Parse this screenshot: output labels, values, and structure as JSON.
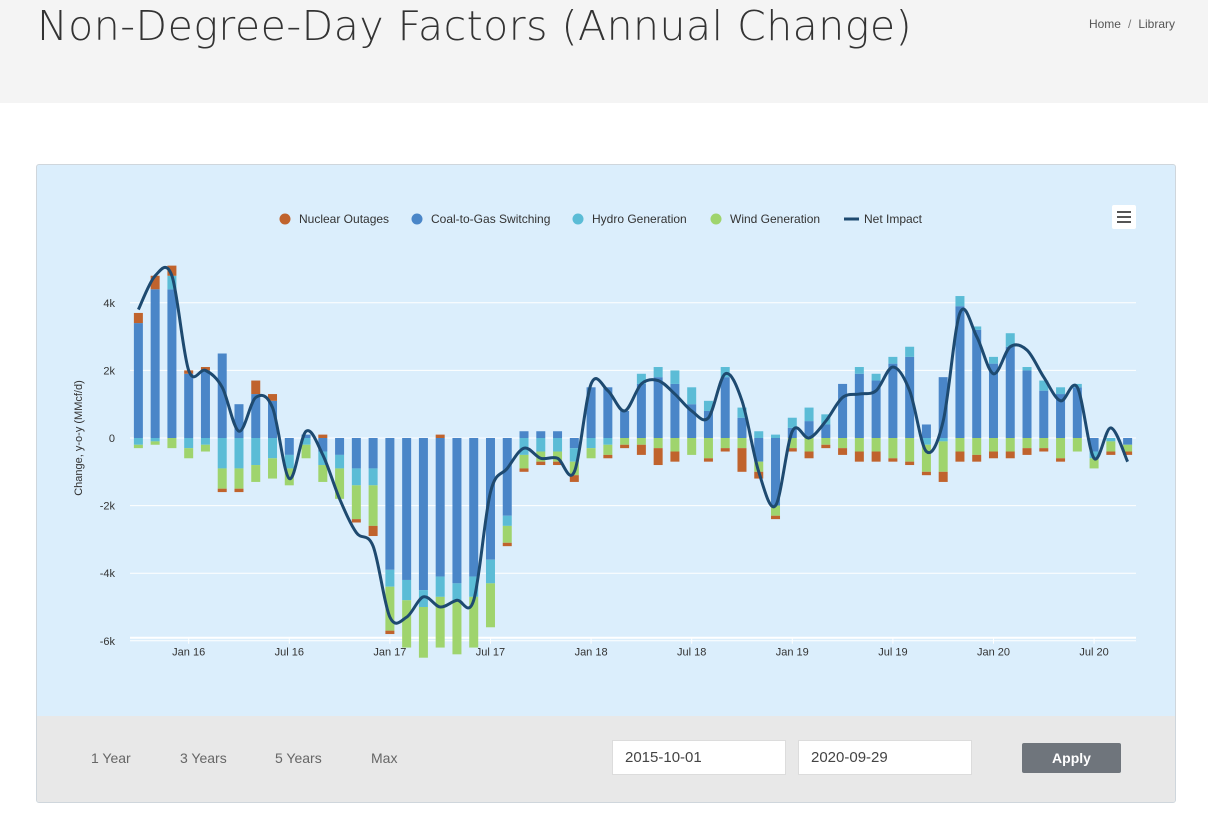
{
  "header": {
    "title": "Non-Degree-Day Factors (Annual Change)",
    "breadcrumb": {
      "home": "Home",
      "separator": "/",
      "current": "Library"
    }
  },
  "controls": {
    "ranges": [
      "1 Year",
      "3 Years",
      "5 Years",
      "Max"
    ],
    "start_date": "2015-10-01",
    "end_date": "2020-09-29",
    "apply_label": "Apply"
  },
  "colors": {
    "nuclear": "#c0632d",
    "coal": "#4a86c8",
    "hydro": "#5bbcd6",
    "wind": "#9fd46d",
    "net": "#1e4a70",
    "panel_bg": "#dbeefc",
    "apply_bg": "#6f757c"
  },
  "icons": {
    "menu": "hamburger-menu-icon"
  },
  "chart_data": {
    "type": "bar",
    "stacked": true,
    "title": "",
    "xlabel": "",
    "ylabel": "Change, y-o-y (MMcf/d)",
    "ylim": [
      -6500,
      5500
    ],
    "yticks": [
      -6000,
      -4000,
      -2000,
      0,
      2000,
      4000
    ],
    "ytick_labels": [
      "-6k",
      "-4k",
      "-2k",
      "0",
      "2k",
      "4k"
    ],
    "legend_position": "top",
    "grid": true,
    "categories": [
      "2015-10",
      "2015-11",
      "2015-12",
      "2016-01",
      "2016-02",
      "2016-03",
      "2016-04",
      "2016-05",
      "2016-06",
      "2016-07",
      "2016-08",
      "2016-09",
      "2016-10",
      "2016-11",
      "2016-12",
      "2017-01",
      "2017-02",
      "2017-03",
      "2017-04",
      "2017-05",
      "2017-06",
      "2017-07",
      "2017-08",
      "2017-09",
      "2017-10",
      "2017-11",
      "2017-12",
      "2018-01",
      "2018-02",
      "2018-03",
      "2018-04",
      "2018-05",
      "2018-06",
      "2018-07",
      "2018-08",
      "2018-09",
      "2018-10",
      "2018-11",
      "2018-12",
      "2019-01",
      "2019-02",
      "2019-03",
      "2019-04",
      "2019-05",
      "2019-06",
      "2019-07",
      "2019-08",
      "2019-09",
      "2019-10",
      "2019-11",
      "2019-12",
      "2020-01",
      "2020-02",
      "2020-03",
      "2020-04",
      "2020-05",
      "2020-06",
      "2020-07",
      "2020-08",
      "2020-09"
    ],
    "x_tick_labels": [
      {
        "category": "2016-01",
        "label": "Jan 16"
      },
      {
        "category": "2016-07",
        "label": "Jul 16"
      },
      {
        "category": "2017-01",
        "label": "Jan 17"
      },
      {
        "category": "2017-07",
        "label": "Jul 17"
      },
      {
        "category": "2018-01",
        "label": "Jan 18"
      },
      {
        "category": "2018-07",
        "label": "Jul 18"
      },
      {
        "category": "2019-01",
        "label": "Jan 19"
      },
      {
        "category": "2019-07",
        "label": "Jul 19"
      },
      {
        "category": "2020-01",
        "label": "Jan 20"
      },
      {
        "category": "2020-07",
        "label": "Jul 20"
      }
    ],
    "series": [
      {
        "name": "Nuclear Outages",
        "type": "bar",
        "color": "#c0632d",
        "values": [
          300,
          400,
          300,
          100,
          100,
          -100,
          -100,
          400,
          200,
          0,
          0,
          100,
          0,
          -100,
          -300,
          -100,
          0,
          0,
          100,
          0,
          0,
          0,
          -100,
          -100,
          -100,
          -100,
          -200,
          0,
          -100,
          -100,
          -300,
          -500,
          -300,
          0,
          -100,
          -100,
          -700,
          -200,
          -100,
          -100,
          -200,
          -100,
          -200,
          -300,
          -300,
          -100,
          -100,
          -100,
          -300,
          -300,
          -200,
          -200,
          -200,
          -200,
          -100,
          -100,
          0,
          0,
          -100,
          -100
        ]
      },
      {
        "name": "Coal-to-Gas Switching",
        "type": "bar",
        "color": "#4a86c8",
        "values": [
          3400,
          4400,
          4400,
          1900,
          2000,
          2500,
          1000,
          1300,
          1100,
          -500,
          100,
          -400,
          -500,
          -900,
          -900,
          -3900,
          -4200,
          -4500,
          -4100,
          -4300,
          -4100,
          -3600,
          -2300,
          200,
          200,
          200,
          -300,
          1500,
          1500,
          800,
          1600,
          1800,
          1600,
          1000,
          800,
          1800,
          600,
          -700,
          -2000,
          300,
          500,
          400,
          1600,
          1900,
          1700,
          2200,
          2400,
          400,
          1800,
          3900,
          3200,
          2200,
          2700,
          2000,
          1400,
          1300,
          1500,
          -400,
          0,
          -200
        ]
      },
      {
        "name": "Hydro Generation",
        "type": "bar",
        "color": "#5bbcd6",
        "values": [
          -200,
          -100,
          400,
          -300,
          -200,
          -900,
          -900,
          -800,
          -600,
          -400,
          -200,
          -400,
          -400,
          -500,
          -500,
          -500,
          -600,
          -500,
          -600,
          -500,
          -600,
          -700,
          -300,
          -500,
          -400,
          -400,
          -400,
          -300,
          -200,
          0,
          300,
          300,
          400,
          500,
          300,
          300,
          300,
          200,
          100,
          300,
          400,
          300,
          0,
          200,
          200,
          200,
          300,
          -200,
          -100,
          300,
          100,
          200,
          400,
          100,
          300,
          200,
          100,
          -200,
          -100,
          0
        ]
      },
      {
        "name": "Wind Generation",
        "type": "bar",
        "color": "#9fd46d",
        "values": [
          -100,
          -100,
          -300,
          -300,
          -200,
          -600,
          -600,
          -500,
          -600,
          -500,
          -400,
          -500,
          -900,
          -1000,
          -1200,
          -1300,
          -1400,
          -1500,
          -1500,
          -1600,
          -1500,
          -1300,
          -500,
          -400,
          -300,
          -300,
          -400,
          -300,
          -300,
          -200,
          -200,
          -300,
          -400,
          -500,
          -600,
          -300,
          -300,
          -300,
          -300,
          -300,
          -400,
          -200,
          -300,
          -400,
          -400,
          -600,
          -700,
          -800,
          -900,
          -400,
          -500,
          -400,
          -400,
          -300,
          -300,
          -600,
          -400,
          -300,
          -300,
          -200
        ]
      },
      {
        "name": "Net Impact",
        "type": "line",
        "color": "#1e4a70",
        "values": [
          3800,
          4800,
          4800,
          2000,
          2000,
          1500,
          200,
          1200,
          900,
          -1200,
          200,
          -500,
          -1800,
          -2800,
          -3200,
          -5300,
          -5300,
          -4700,
          -5000,
          -4800,
          -4800,
          -1600,
          -900,
          -300,
          -600,
          -600,
          -1000,
          1600,
          1400,
          800,
          1600,
          1700,
          1300,
          800,
          600,
          1900,
          1100,
          -1000,
          -2000,
          200,
          0,
          500,
          1200,
          1300,
          1400,
          2100,
          1400,
          -400,
          500,
          3700,
          3000,
          1900,
          2700,
          2600,
          1800,
          1100,
          1500,
          -600,
          300,
          -700
        ]
      }
    ]
  }
}
